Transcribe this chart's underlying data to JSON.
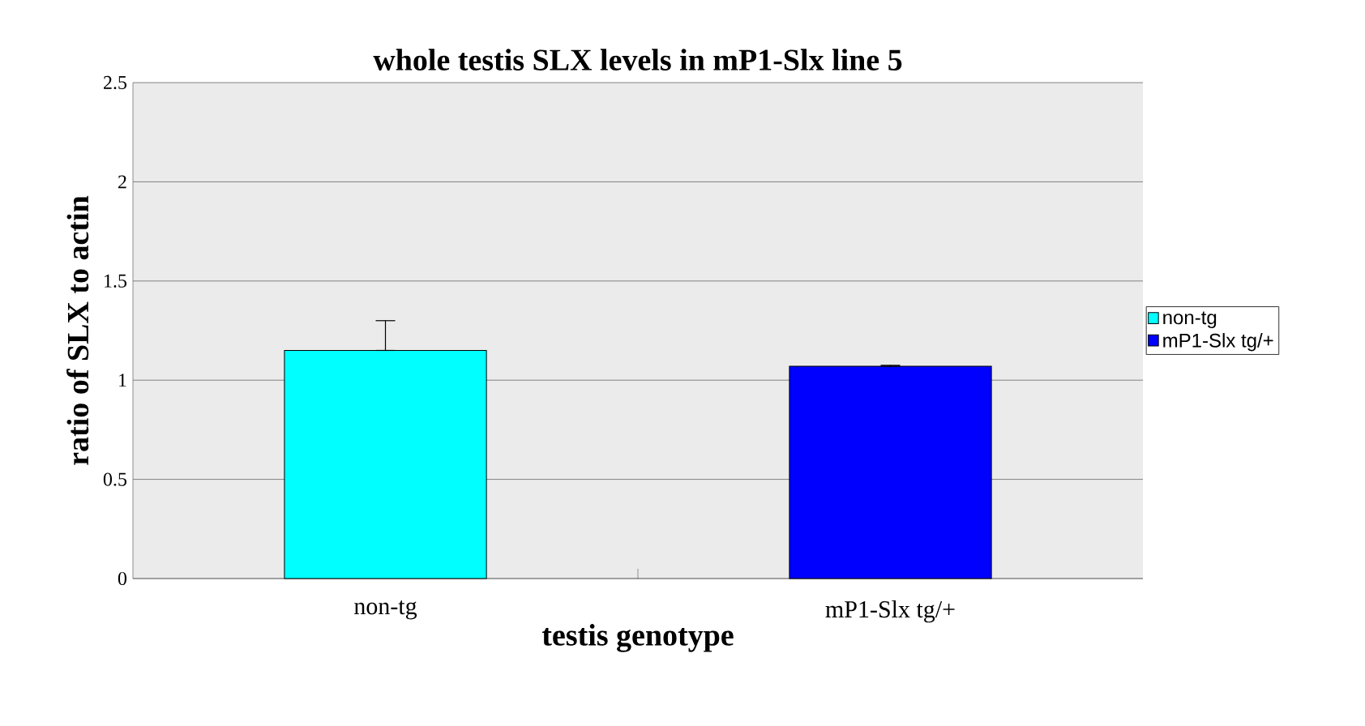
{
  "chart_data": {
    "type": "bar",
    "title": "whole testis SLX levels in mP1-Slx line 5",
    "xlabel": "testis genotype",
    "ylabel": "ratio of SLX to actin",
    "categories": [
      "non-tg",
      "mP1-Slx tg/+"
    ],
    "series": [
      {
        "name": "non-tg",
        "color": "#00ffff",
        "values": [
          1.15,
          null
        ],
        "errors": [
          [
            1.15,
            1.3
          ],
          null
        ]
      },
      {
        "name": "mP1-Slx tg/+",
        "color": "#0000ff",
        "values": [
          null,
          1.07
        ],
        "errors": [
          null,
          [
            1.07,
            1.075
          ]
        ]
      }
    ],
    "ylim": [
      0,
      2.5
    ],
    "yticks": [
      0,
      0.5,
      1,
      1.5,
      2,
      2.5
    ],
    "grid": "y",
    "legend": "right"
  }
}
